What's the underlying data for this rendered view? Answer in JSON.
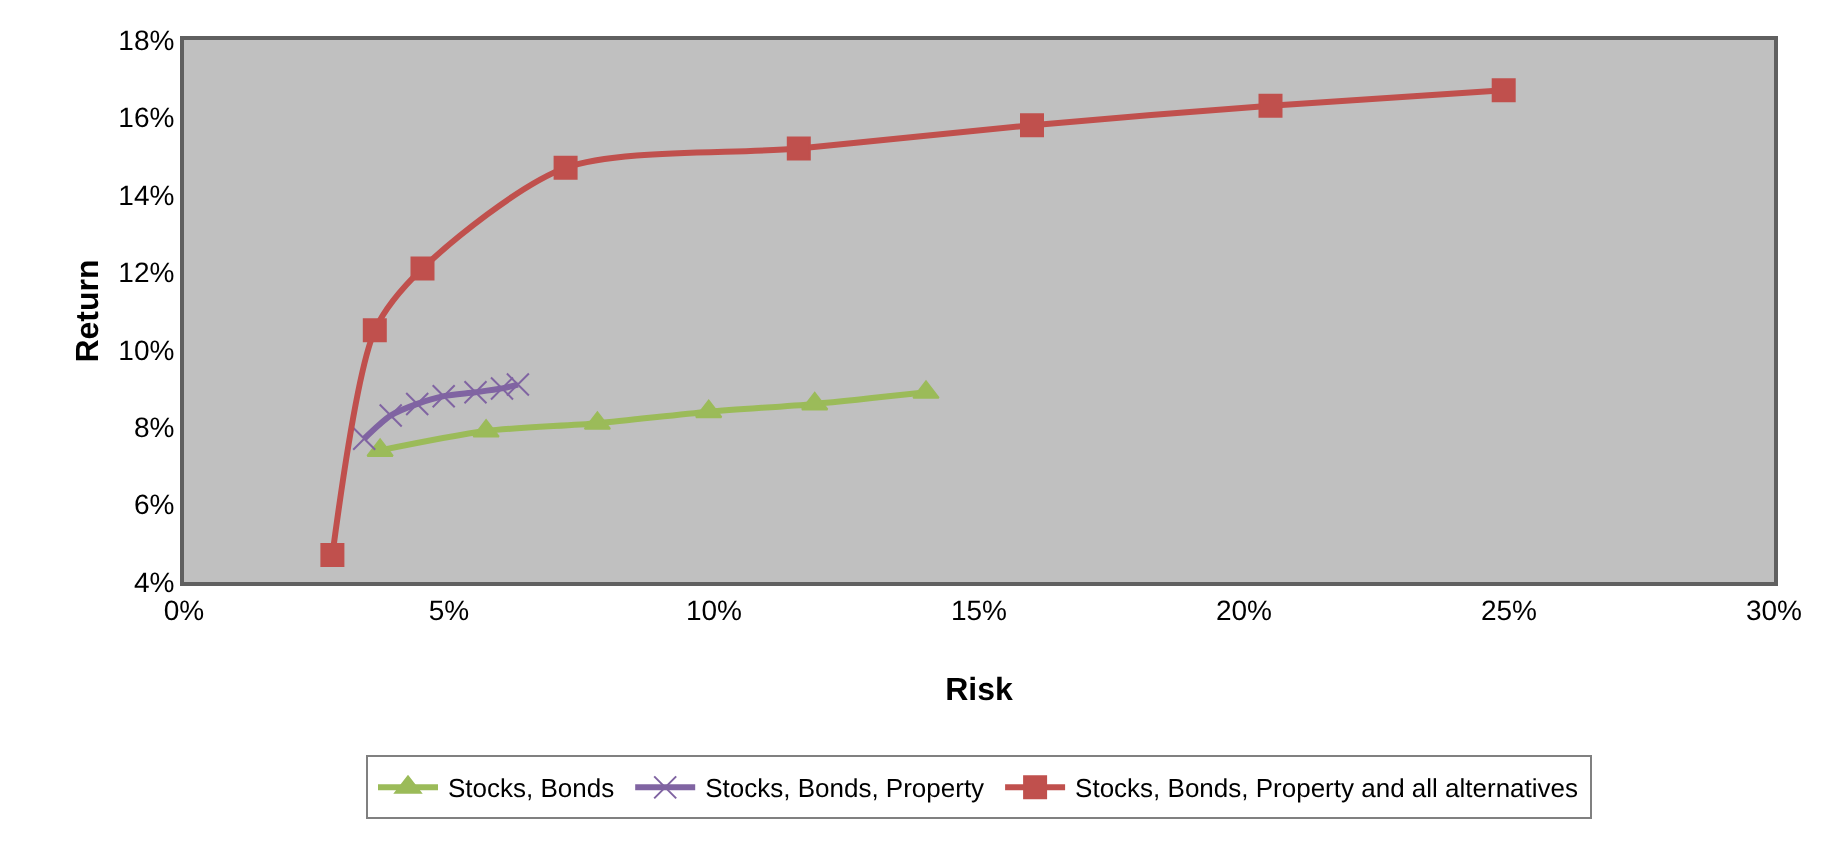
{
  "chart_data": {
    "type": "line",
    "xlabel": "Risk",
    "ylabel": "Return",
    "xlim": [
      0,
      30
    ],
    "xticks": [
      {
        "value": 0,
        "label": "0%"
      },
      {
        "value": 5,
        "label": "5%"
      },
      {
        "value": 10,
        "label": "10%"
      },
      {
        "value": 15,
        "label": "15%"
      },
      {
        "value": 20,
        "label": "20%"
      },
      {
        "value": 25,
        "label": "25%"
      },
      {
        "value": 30,
        "label": "30%"
      }
    ],
    "ylim": [
      4,
      18
    ],
    "yticks": [
      {
        "value": 4,
        "label": "4%"
      },
      {
        "value": 6,
        "label": "6%"
      },
      {
        "value": 8,
        "label": "8%"
      },
      {
        "value": 10,
        "label": "10%"
      },
      {
        "value": 12,
        "label": "12%"
      },
      {
        "value": 14,
        "label": "14%"
      },
      {
        "value": 16,
        "label": "16%"
      },
      {
        "value": 18,
        "label": "18%"
      }
    ],
    "grid": false,
    "legend": "bottom",
    "series": [
      {
        "name": "Stocks, Bonds",
        "color": "#9bbb59",
        "marker": "triangle",
        "x": [
          3.7,
          5.7,
          7.8,
          9.9,
          11.9,
          14.0
        ],
        "values": [
          7.4,
          7.9,
          8.1,
          8.4,
          8.6,
          8.9
        ]
      },
      {
        "name": "Stocks, Bonds, Property",
        "color": "#8064a2",
        "marker": "cross",
        "x": [
          3.4,
          3.9,
          4.4,
          4.9,
          5.5,
          6.0,
          6.3
        ],
        "values": [
          7.7,
          8.3,
          8.6,
          8.8,
          8.9,
          9.0,
          9.1
        ]
      },
      {
        "name": "Stocks, Bonds, Property and all alternatives",
        "color": "#c0504d",
        "marker": "square",
        "x": [
          2.8,
          3.6,
          4.5,
          7.2,
          11.6,
          16.0,
          20.5,
          24.9
        ],
        "values": [
          4.7,
          10.5,
          12.1,
          14.7,
          15.2,
          15.8,
          16.3,
          16.7
        ]
      }
    ]
  }
}
